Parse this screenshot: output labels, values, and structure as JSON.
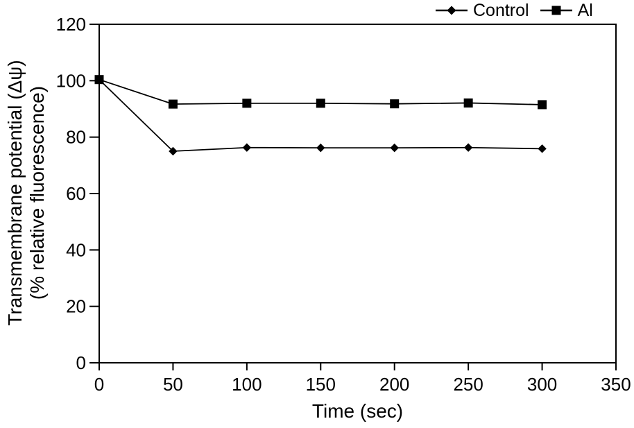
{
  "chart_data": {
    "type": "line",
    "xlabel": "Time (sec)",
    "ylabel_line1": "Transmembrane potential (Δψ)",
    "ylabel_line2": "(% relative fluorescence)",
    "xlim": [
      0,
      350
    ],
    "ylim": [
      0,
      120
    ],
    "x_ticks": [
      0,
      50,
      100,
      150,
      200,
      250,
      300,
      350
    ],
    "y_ticks": [
      0,
      20,
      40,
      60,
      80,
      100,
      120
    ],
    "x": [
      0,
      50,
      100,
      150,
      200,
      250,
      300
    ],
    "series": [
      {
        "name": "Control",
        "marker": "diamond",
        "color": "#000000",
        "values": [
          100.4,
          75.0,
          76.3,
          76.2,
          76.2,
          76.3,
          75.9
        ]
      },
      {
        "name": "Al",
        "marker": "square",
        "color": "#000000",
        "values": [
          100.4,
          91.7,
          92.0,
          92.0,
          91.8,
          92.1,
          91.5
        ]
      }
    ],
    "legend_position": "top-right",
    "grid": false,
    "background": "#ffffff",
    "axis_color": "#000000"
  }
}
